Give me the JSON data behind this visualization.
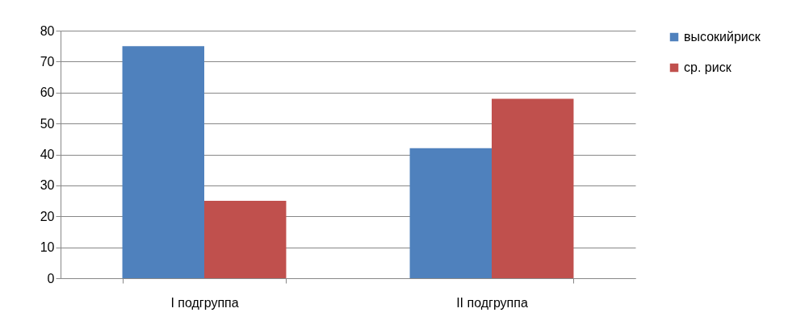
{
  "chart_data": {
    "type": "bar",
    "categories": [
      "I подгруппа",
      "II подгруппа"
    ],
    "series": [
      {
        "name": "высокийриск",
        "color": "#4f81bd",
        "values": [
          75,
          42
        ]
      },
      {
        "name": "ср. риск",
        "color": "#c0504d",
        "values": [
          25,
          58
        ]
      }
    ],
    "ylim": [
      0,
      80
    ],
    "yticks": [
      0,
      10,
      20,
      30,
      40,
      50,
      60,
      70,
      80
    ],
    "grid": "y",
    "legend": "right"
  }
}
